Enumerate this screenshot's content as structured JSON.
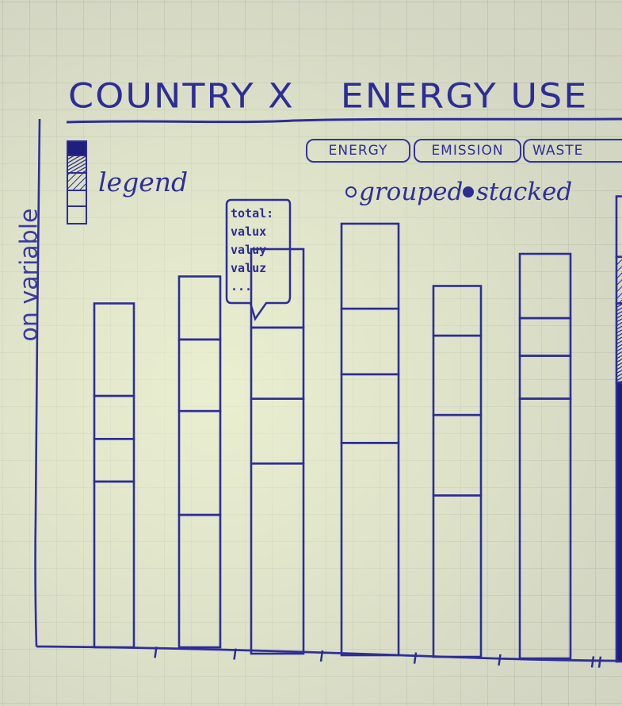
{
  "title": {
    "part1": "COUNTRY X",
    "part2": "ENERGY USE"
  },
  "y_axis_label": "on variable",
  "legend": {
    "label": "legend"
  },
  "tabs": [
    "ENERGY",
    "EMISSION",
    "WASTE"
  ],
  "modes": {
    "grouped": "grouped",
    "stacked": "stacked",
    "selected": "stacked"
  },
  "tooltip": {
    "lines": [
      "total:",
      "valux",
      "valuy",
      "valuz",
      "..."
    ]
  },
  "chart_data": {
    "type": "bar",
    "stacked": true,
    "bar_count": 7,
    "segment_fractions": [
      [
        0.482,
        0.124,
        0.125,
        0.269
      ],
      [
        0.357,
        0.28,
        0.193,
        0.17
      ],
      [
        0.47,
        0.16,
        0.176,
        0.194
      ],
      [
        0.492,
        0.159,
        0.152,
        0.197
      ],
      [
        0.435,
        0.217,
        0.214,
        0.134
      ],
      [
        0.642,
        0.106,
        0.093,
        0.159
      ],
      [
        0.6,
        0.17,
        0.1,
        0.13
      ]
    ],
    "bar_totals_relative": [
      0.51,
      0.55,
      0.6,
      0.64,
      0.55,
      0.6,
      0.69
    ]
  },
  "colors": {
    "ink": "#2d2d96",
    "paper": "#e4e8cc",
    "grid": "#9aa394"
  }
}
